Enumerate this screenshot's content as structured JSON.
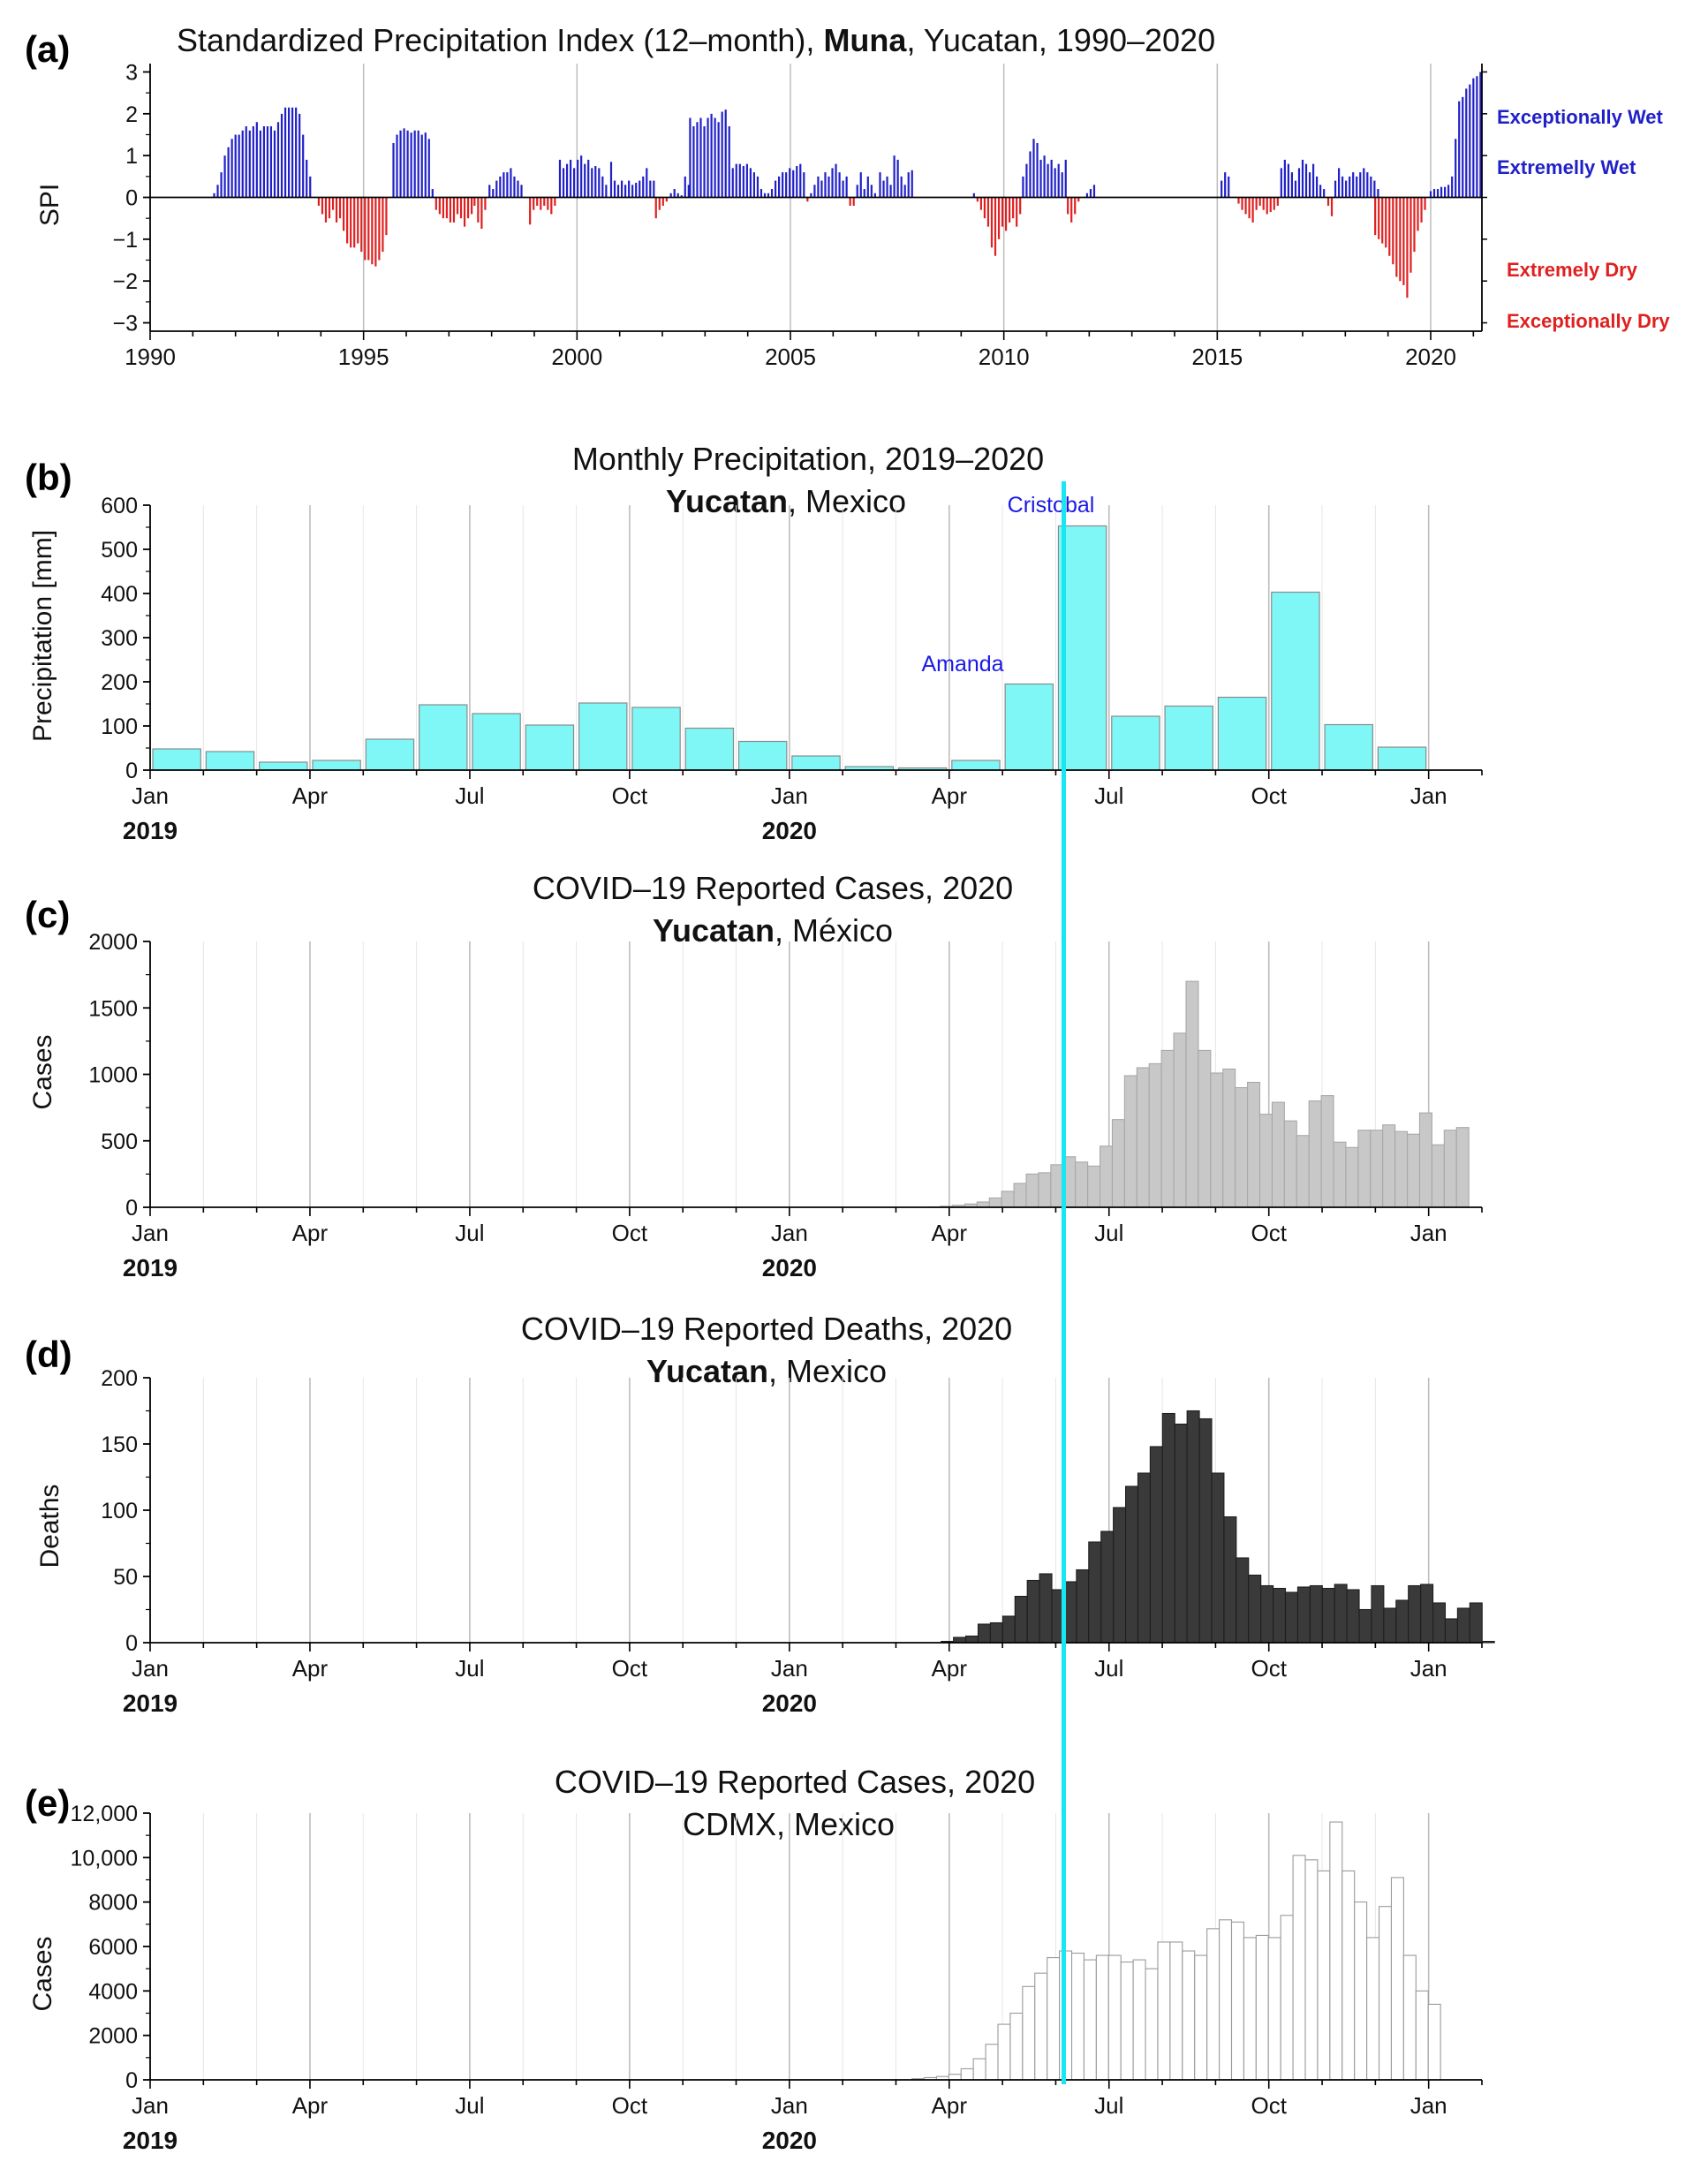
{
  "colors": {
    "wet": "#2020c8",
    "dry": "#e02020",
    "precip_fill": "#7ff7f7",
    "cases_fill": "#c8c8c8",
    "deaths_fill": "#3a3a3a",
    "cdmx_fill": "#ffffff",
    "marker": "#19e6f0",
    "annotation": "#1a1ae6"
  },
  "chart_data": [
    {
      "id": "a",
      "type": "bar",
      "panel_label": "(a)",
      "title_pre": "Standardized Precipitation Index (12–month), ",
      "title_bold": "Muna",
      "title_post": ", Yucatan, 1990–2020",
      "ylabel": "SPI",
      "xlim": [
        1990,
        2021.2
      ],
      "ylim": [
        -3.2,
        3.2
      ],
      "x_ticks": [
        1990,
        1995,
        2000,
        2005,
        2010,
        2015,
        2020
      ],
      "y_ticks": [
        -3,
        -2,
        -1,
        0,
        1,
        2,
        3
      ],
      "categories_text": [
        {
          "label": "Exceptionally Wet",
          "color": "wet"
        },
        {
          "label": "Extremelly Wet",
          "color": "wet"
        },
        {
          "label": "Extremely Dry",
          "color": "dry"
        },
        {
          "label": "Exceptionally Dry",
          "color": "dry"
        }
      ],
      "series": [
        {
          "start": 1991.5,
          "values": [
            0.1,
            0.3,
            0.6,
            1.0,
            1.2,
            1.4,
            1.5,
            1.5,
            1.6,
            1.7,
            1.6,
            1.7,
            1.8,
            1.6,
            1.7,
            1.7,
            1.7,
            1.6,
            1.8,
            2.0,
            2.15,
            2.15,
            2.15,
            2.15,
            2.0,
            1.5,
            0.9,
            0.5
          ]
        },
        {
          "start": 1993.95,
          "values": [
            -0.2,
            -0.4,
            -0.6,
            -0.5,
            -0.3,
            -0.6,
            -0.5,
            -0.8,
            -1.1,
            -1.2,
            -1.2,
            -1.1,
            -1.3,
            -1.5,
            -1.5,
            -1.6,
            -1.65,
            -1.5,
            -1.3,
            -0.9
          ]
        },
        {
          "start": 1995.7,
          "values": [
            1.3,
            1.5,
            1.6,
            1.65,
            1.6,
            1.55,
            1.6,
            1.6,
            1.5,
            1.55,
            1.4,
            0.2
          ]
        },
        {
          "start": 1996.7,
          "values": [
            -0.3,
            -0.4,
            -0.5,
            -0.5,
            -0.6,
            -0.6,
            -0.4,
            -0.5,
            -0.7,
            -0.5,
            -0.4
          ]
        },
        {
          "start": 1997.6,
          "values": [
            -0.2,
            -0.6,
            -0.75,
            -0.3
          ]
        },
        {
          "start": 1997.95,
          "values": [
            0.3,
            0.2,
            0.4,
            0.5,
            0.6,
            0.6,
            0.7,
            0.5,
            0.4,
            0.3
          ]
        },
        {
          "start": 1998.9,
          "values": [
            -0.65,
            -0.3,
            -0.2,
            -0.3,
            -0.2,
            -0.3,
            -0.4,
            -0.2
          ]
        },
        {
          "start": 1999.6,
          "values": [
            0.9,
            0.7,
            0.8,
            0.9,
            0.7,
            0.9,
            1.0,
            0.8,
            0.9,
            0.7,
            0.75,
            0.7,
            0.5,
            0.3
          ]
        },
        {
          "start": 2000.8,
          "values": [
            0.85,
            0.4,
            0.3,
            0.4,
            0.3,
            0.4,
            0.3,
            0.35,
            0.4,
            0.5,
            0.7,
            0.4,
            0.4
          ]
        },
        {
          "start": 2001.85,
          "values": [
            -0.5,
            -0.3,
            -0.2,
            -0.1
          ]
        },
        {
          "start": 2002.2,
          "values": [
            0.1,
            0.2,
            0.1,
            0.05,
            0.5,
            0.3
          ]
        },
        {
          "start": 2002.65,
          "values": [
            1.9,
            1.7,
            1.8,
            1.9,
            1.7,
            1.9,
            2.0,
            1.9,
            1.8,
            2.05,
            2.1,
            1.7
          ]
        },
        {
          "start": 2003.65,
          "values": [
            0.7,
            0.8,
            0.8,
            0.75,
            0.8,
            0.7,
            0.6,
            0.5,
            0.2,
            0.1,
            0.1,
            0.2,
            0.4,
            0.5,
            0.6,
            0.6,
            0.7,
            0.65,
            0.75,
            0.8,
            0.6
          ]
        },
        {
          "start": 2005.4,
          "values": [
            -0.1,
            0.1,
            0.3,
            0.5,
            0.4,
            0.6,
            0.5,
            0.7,
            0.8,
            0.6,
            0.4,
            0.5
          ]
        },
        {
          "start": 2006.4,
          "values": [
            -0.2,
            -0.2,
            0.3,
            0.6,
            0.2,
            0.5,
            0.3,
            0.1
          ]
        },
        {
          "start": 2007.1,
          "values": [
            0.6,
            0.4,
            0.5,
            0.3,
            1.0,
            0.9,
            0.5,
            0.3,
            0.6,
            0.65
          ]
        },
        {
          "start": 2009.3,
          "values": [
            0.1,
            -0.1,
            -0.3,
            -0.5,
            -0.7,
            -1.2,
            -1.4,
            -1.0,
            -0.7,
            -0.8,
            -0.6,
            -0.5,
            -0.7,
            -0.4
          ]
        },
        {
          "start": 2010.45,
          "values": [
            0.5,
            0.8,
            1.1,
            1.4,
            1.3,
            0.9,
            1.0,
            0.8,
            0.9,
            0.7,
            0.8,
            0.6,
            0.9
          ]
        },
        {
          "start": 2011.5,
          "values": [
            -0.4,
            -0.6,
            -0.4,
            -0.1
          ]
        },
        {
          "start": 2011.95,
          "values": [
            0.1,
            0.2,
            0.3
          ]
        },
        {
          "start": 2015.1,
          "values": [
            0.4,
            0.6,
            0.5
          ]
        },
        {
          "start": 2015.5,
          "values": [
            -0.15,
            -0.3,
            -0.4,
            -0.5,
            -0.6,
            -0.3,
            -0.2,
            -0.3,
            -0.4,
            -0.35,
            -0.3,
            -0.2
          ]
        },
        {
          "start": 2016.5,
          "values": [
            0.7,
            0.9,
            0.8,
            0.6,
            0.4,
            0.7,
            0.9,
            0.8,
            0.6,
            0.8,
            0.5,
            0.3,
            0.2
          ]
        },
        {
          "start": 2017.6,
          "values": [
            -0.2,
            -0.45,
            0.4,
            0.7,
            0.5,
            0.4,
            0.5,
            0.6,
            0.5,
            0.6,
            0.7,
            0.6,
            0.5,
            0.4,
            0.2
          ]
        },
        {
          "start": 2018.7,
          "values": [
            -0.9,
            -1.0,
            -1.1,
            -1.2,
            -1.4,
            -1.6,
            -1.9,
            -2.0,
            -2.1,
            -2.4,
            -1.8,
            -1.3,
            -0.8,
            -0.6,
            -0.3
          ]
        },
        {
          "start": 2020.0,
          "values": [
            0.15,
            0.2,
            0.2,
            0.25,
            0.25,
            0.3,
            0.5,
            1.4,
            2.3,
            2.4,
            2.6,
            2.7,
            2.85,
            2.9,
            3.0
          ]
        }
      ]
    },
    {
      "id": "b",
      "type": "bar",
      "panel_label": "(b)",
      "title_line1": "Monthly Precipitation, 2019–2020",
      "title_bold": "Yucatan",
      "title_post": ", Mexico",
      "ylabel": "Precipitation [mm]",
      "ylim": [
        0,
        600
      ],
      "y_ticks": [
        0,
        100,
        200,
        300,
        400,
        500,
        600
      ],
      "x_tick_labels": [
        "Jan",
        "Apr",
        "Jul",
        "Oct",
        "Jan",
        "Apr",
        "Jul",
        "Oct",
        "Jan"
      ],
      "year_labels": [
        "2019",
        "2020"
      ],
      "values": [
        48,
        42,
        18,
        22,
        70,
        148,
        128,
        102,
        152,
        142,
        95,
        65,
        32,
        8,
        5,
        22,
        195,
        553,
        122,
        145,
        165,
        403,
        103,
        52
      ],
      "annotations": [
        {
          "text": "Amanda",
          "month": 16
        },
        {
          "text": "Cristobal",
          "month": 17
        }
      ]
    },
    {
      "id": "c",
      "type": "bar",
      "panel_label": "(c)",
      "title_line1": "COVID–19 Reported Cases, 2020",
      "title_bold": "Yucatan",
      "title_post": ", México",
      "ylabel": "Cases",
      "ylim": [
        0,
        2000
      ],
      "y_ticks": [
        0,
        500,
        1000,
        1500,
        2000
      ],
      "x_tick_labels": [
        "Jan",
        "Apr",
        "Jul",
        "Oct",
        "Jan",
        "Apr",
        "Jul",
        "Oct",
        "Jan"
      ],
      "year_labels": [
        "2019",
        "2020"
      ],
      "week_start_month": 14.6,
      "values": [
        2,
        8,
        15,
        25,
        40,
        70,
        120,
        180,
        250,
        260,
        320,
        380,
        340,
        310,
        460,
        660,
        990,
        1050,
        1080,
        1180,
        1310,
        1700,
        1180,
        1010,
        1040,
        900,
        940,
        700,
        790,
        650,
        540,
        800,
        840,
        490,
        450,
        580,
        580,
        620,
        570,
        550,
        710,
        470,
        580,
        600
      ]
    },
    {
      "id": "d",
      "type": "bar",
      "panel_label": "(d)",
      "title_line1": "COVID–19 Reported Deaths, 2020",
      "title_bold": "Yucatan",
      "title_post": ", Mexico",
      "ylabel": "Deaths",
      "ylim": [
        0,
        200
      ],
      "y_ticks": [
        0,
        50,
        100,
        150,
        200
      ],
      "x_tick_labels": [
        "Jan",
        "Apr",
        "Jul",
        "Oct",
        "Jan"
      ],
      "year_labels": [
        "2019",
        "2020"
      ],
      "week_start_month": 14.85,
      "values": [
        1,
        4,
        5,
        14,
        15,
        20,
        35,
        47,
        52,
        40,
        46,
        55,
        76,
        84,
        102,
        118,
        128,
        148,
        173,
        165,
        175,
        169,
        128,
        95,
        64,
        51,
        43,
        41,
        38,
        42,
        43,
        41,
        44,
        40,
        25,
        43,
        26,
        32,
        43,
        44,
        30,
        18,
        26,
        30,
        1
      ]
    },
    {
      "id": "e",
      "type": "bar",
      "panel_label": "(e)",
      "title_line1": "COVID–19 Reported Cases, 2020",
      "title_line2": "CDMX, Mexico",
      "ylabel": "Cases",
      "ylim": [
        0,
        12000
      ],
      "y_ticks": [
        0,
        2000,
        4000,
        6000,
        8000,
        10000,
        12000
      ],
      "y_tick_labels": [
        "0",
        "2000",
        "4000",
        "6000",
        "8000",
        "10,000",
        "12,000"
      ],
      "x_tick_labels": [
        "Jan",
        "Apr",
        "Jul",
        "Oct",
        "Jan"
      ],
      "year_labels": [
        "2019",
        "2020"
      ],
      "week_start_month": 14.3,
      "values": [
        50,
        100,
        150,
        250,
        500,
        950,
        1600,
        2500,
        3000,
        4200,
        4800,
        5500,
        5800,
        5700,
        5400,
        5600,
        5600,
        5300,
        5400,
        5000,
        6200,
        6200,
        5800,
        5600,
        6800,
        7200,
        7100,
        6400,
        6500,
        6400,
        7400,
        10100,
        9900,
        9400,
        11600,
        9400,
        8000,
        6400,
        7800,
        9100,
        5600,
        4000,
        3400
      ]
    }
  ],
  "marker_month": 17.15
}
